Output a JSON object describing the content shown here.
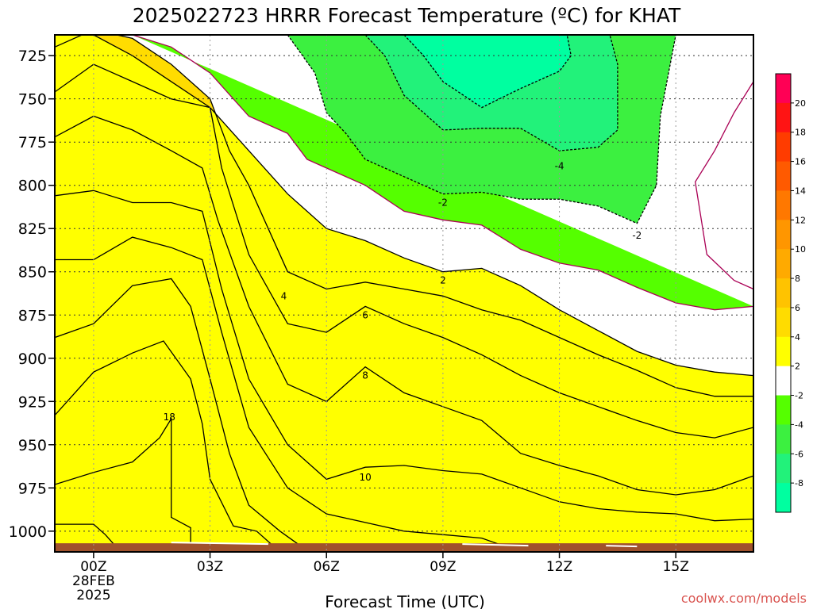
{
  "title": "2025022723 HRRR Forecast Temperature (ºC) for KHAT",
  "xlabel": "Forecast Time (UTC)",
  "credit": "coolwx.com/models",
  "chart_data": {
    "type": "contour",
    "title": "2025022723 HRRR Forecast Temperature (ºC) for KHAT",
    "xlabel": "Forecast Time (UTC)",
    "ylabel": "",
    "x_unit": "forecast hours from 00Z 28FEB 2025",
    "xlim": [
      -1.0,
      17.0
    ],
    "y_unit": "hPa",
    "ylim": [
      1012,
      713
    ],
    "y_ticks": [
      725,
      750,
      775,
      800,
      825,
      850,
      875,
      900,
      925,
      950,
      975,
      1000
    ],
    "x_ticks": [
      {
        "x": 0,
        "label": "00Z",
        "sub": [
          "28FEB",
          "2025"
        ]
      },
      {
        "x": 3,
        "label": "03Z",
        "sub": []
      },
      {
        "x": 6,
        "label": "06Z",
        "sub": []
      },
      {
        "x": 9,
        "label": "09Z",
        "sub": []
      },
      {
        "x": 12,
        "label": "12Z",
        "sub": []
      },
      {
        "x": 15,
        "label": "15Z",
        "sub": []
      }
    ],
    "grid": true,
    "colorbar": {
      "labels": [
        "20",
        "18",
        "16",
        "14",
        "12",
        "10",
        "8",
        "6",
        "4",
        "2",
        "-2",
        "-4",
        "-6",
        "-8"
      ],
      "colors": [
        "#ff0055",
        "#ff1414",
        "#ff3c00",
        "#ff5a00",
        "#ff7800",
        "#ff9600",
        "#ffaa00",
        "#ffc300",
        "#ffdc00",
        "#ffff00",
        "#ffffff",
        "#55ff00",
        "#3cf040",
        "#22f27a",
        "#00ffa0"
      ]
    },
    "ground_level_hpa": 1007,
    "contours": [
      {
        "level": 20,
        "label": "",
        "fill": "#ff0055",
        "stroke": "#000000",
        "points": [
          [
            -1,
            1012
          ],
          [
            -1,
            996
          ],
          [
            0.0,
            996
          ],
          [
            0.3,
            1002
          ],
          [
            0.5,
            1007
          ],
          [
            0.6,
            1012
          ]
        ]
      },
      {
        "level": 18,
        "label": "18",
        "fill": "#ff1414",
        "stroke": "#000000",
        "points": [
          [
            -1,
            1012
          ],
          [
            -1,
            973
          ],
          [
            0.0,
            966
          ],
          [
            1.0,
            960
          ],
          [
            1.5,
            950
          ],
          [
            1.7,
            946
          ],
          [
            2.0,
            935
          ],
          [
            2.0,
            960
          ],
          [
            2.0,
            992
          ],
          [
            2.5,
            998
          ],
          [
            2.5,
            1012
          ]
        ]
      },
      {
        "level": 16,
        "label": "",
        "fill": "#ff3c00",
        "stroke": "#000000",
        "points": [
          [
            -1,
            1012
          ],
          [
            -1,
            933
          ],
          [
            0.0,
            908
          ],
          [
            1.0,
            897
          ],
          [
            1.8,
            890
          ],
          [
            2.5,
            912
          ],
          [
            2.8,
            938
          ],
          [
            3.0,
            970
          ],
          [
            3.6,
            997
          ],
          [
            4.2,
            1000
          ],
          [
            4.8,
            1012
          ]
        ]
      },
      {
        "level": 14,
        "label": "",
        "fill": "#ff5a00",
        "stroke": "#000000",
        "points": [
          [
            -1,
            1012
          ],
          [
            -1,
            888
          ],
          [
            0.0,
            880
          ],
          [
            1.0,
            858
          ],
          [
            2.0,
            854
          ],
          [
            2.5,
            870
          ],
          [
            3.0,
            912
          ],
          [
            3.5,
            955
          ],
          [
            4.0,
            985
          ],
          [
            4.8,
            1000
          ],
          [
            5.3,
            1008
          ],
          [
            5.5,
            1012
          ]
        ]
      },
      {
        "level": 12,
        "label": "",
        "fill": "#ff7800",
        "stroke": "#000000",
        "points": [
          [
            -1,
            1012
          ],
          [
            -1,
            843
          ],
          [
            0.0,
            843
          ],
          [
            1.0,
            830
          ],
          [
            2.0,
            836
          ],
          [
            2.8,
            843
          ],
          [
            3.3,
            885
          ],
          [
            4.0,
            940
          ],
          [
            5.0,
            975
          ],
          [
            6.0,
            990
          ],
          [
            7.0,
            995
          ],
          [
            8.0,
            1000
          ],
          [
            9.0,
            1002
          ],
          [
            10.0,
            1004
          ],
          [
            10.5,
            1008
          ],
          [
            10.7,
            1012
          ]
        ]
      },
      {
        "level": 10,
        "label": "10",
        "fill": "#ff9600",
        "stroke": "#000000",
        "points": [
          [
            -1,
            1012
          ],
          [
            -1,
            806
          ],
          [
            0.0,
            803
          ],
          [
            1.0,
            810
          ],
          [
            2.0,
            810
          ],
          [
            2.8,
            815
          ],
          [
            3.3,
            860
          ],
          [
            4.0,
            912
          ],
          [
            5.0,
            950
          ],
          [
            6.0,
            970
          ],
          [
            7.0,
            963
          ],
          [
            8.0,
            962
          ],
          [
            9.0,
            965
          ],
          [
            10.0,
            967
          ],
          [
            11.0,
            975
          ],
          [
            12.0,
            983
          ],
          [
            13.0,
            987
          ],
          [
            14.0,
            989
          ],
          [
            15.0,
            990
          ],
          [
            16.0,
            994
          ],
          [
            17.0,
            993
          ],
          [
            17.0,
            1012
          ]
        ]
      },
      {
        "level": 8,
        "label": "8",
        "fill": "#ffaa00",
        "stroke": "#000000",
        "points": [
          [
            -1,
            1012
          ],
          [
            -1,
            772
          ],
          [
            0.0,
            760
          ],
          [
            1.0,
            768
          ],
          [
            2.0,
            780
          ],
          [
            2.8,
            790
          ],
          [
            3.2,
            820
          ],
          [
            4.0,
            870
          ],
          [
            5.0,
            915
          ],
          [
            6.0,
            925
          ],
          [
            7.0,
            905
          ],
          [
            8.0,
            920
          ],
          [
            9.0,
            928
          ],
          [
            10.0,
            936
          ],
          [
            11.0,
            955
          ],
          [
            12.0,
            962
          ],
          [
            13.0,
            968
          ],
          [
            14.0,
            976
          ],
          [
            15.0,
            979
          ],
          [
            16.0,
            976
          ],
          [
            17.0,
            968
          ],
          [
            17.0,
            1012
          ]
        ]
      },
      {
        "level": 6,
        "label": "6",
        "fill": "#ffc300",
        "stroke": "#000000",
        "points": [
          [
            -1,
            1012
          ],
          [
            -1,
            746
          ],
          [
            0.0,
            730
          ],
          [
            1.0,
            740
          ],
          [
            2.0,
            750
          ],
          [
            3.0,
            755
          ],
          [
            3.3,
            790
          ],
          [
            4.0,
            840
          ],
          [
            5.0,
            880
          ],
          [
            6.0,
            885
          ],
          [
            7.0,
            870
          ],
          [
            8.0,
            880
          ],
          [
            9.0,
            888
          ],
          [
            10.0,
            898
          ],
          [
            11.0,
            910
          ],
          [
            12.0,
            920
          ],
          [
            13.0,
            928
          ],
          [
            14.0,
            936
          ],
          [
            15.0,
            943
          ],
          [
            16.0,
            946
          ],
          [
            17.0,
            940
          ],
          [
            17.0,
            1012
          ]
        ]
      },
      {
        "level": 4,
        "label": "4",
        "fill": "#ffdc00",
        "stroke": "#000000",
        "points": [
          [
            -1,
            1012
          ],
          [
            -1,
            720
          ],
          [
            0.0,
            710
          ],
          [
            1.0,
            715
          ],
          [
            2.0,
            730
          ],
          [
            3.0,
            750
          ],
          [
            3.5,
            780
          ],
          [
            4.0,
            800
          ],
          [
            5.0,
            850
          ],
          [
            6.0,
            860
          ],
          [
            7.0,
            856
          ],
          [
            8.0,
            860
          ],
          [
            9.0,
            864
          ],
          [
            10.0,
            872
          ],
          [
            11.0,
            878
          ],
          [
            12.0,
            888
          ],
          [
            13.0,
            898
          ],
          [
            14.0,
            907
          ],
          [
            15.0,
            917
          ],
          [
            16.0,
            922
          ],
          [
            17.0,
            922
          ],
          [
            17.0,
            1012
          ]
        ]
      },
      {
        "level": 2,
        "label": "2",
        "fill": "#ffff00",
        "stroke": "#000000",
        "points": [
          [
            -1,
            1012
          ],
          [
            -1,
            713
          ],
          [
            0.0,
            713
          ],
          [
            1.0,
            725
          ],
          [
            2.0,
            740
          ],
          [
            3.0,
            755
          ],
          [
            3.6,
            770
          ],
          [
            5.0,
            805
          ],
          [
            6.0,
            825
          ],
          [
            7.0,
            832
          ],
          [
            8.0,
            842
          ],
          [
            9.0,
            850
          ],
          [
            10.0,
            848
          ],
          [
            11.0,
            858
          ],
          [
            12.0,
            872
          ],
          [
            13.0,
            884
          ],
          [
            14.0,
            896
          ],
          [
            15.0,
            904
          ],
          [
            16.0,
            908
          ],
          [
            17.0,
            910
          ],
          [
            17.0,
            1012
          ]
        ]
      },
      {
        "level": -2,
        "label": "-2",
        "fill": "#55ff00",
        "stroke": "#aa0055",
        "points": [
          [
            1.0,
            713
          ],
          [
            2.0,
            720
          ],
          [
            3.0,
            735
          ],
          [
            4.0,
            760
          ],
          [
            5.0,
            770
          ],
          [
            5.5,
            785
          ],
          [
            6.0,
            790
          ],
          [
            7.0,
            800
          ],
          [
            8.0,
            815
          ],
          [
            9.0,
            820
          ],
          [
            10.0,
            823
          ],
          [
            11.0,
            837
          ],
          [
            12.0,
            845
          ],
          [
            13.0,
            849
          ],
          [
            14.0,
            859
          ],
          [
            15.0,
            868
          ],
          [
            16.0,
            872
          ],
          [
            17.0,
            870
          ]
        ]
      },
      {
        "level": -2,
        "label": "",
        "fill": "",
        "stroke": "#aa0055",
        "points": [
          [
            17.0,
            740
          ],
          [
            16.5,
            758
          ],
          [
            16.0,
            780
          ],
          [
            15.5,
            798
          ],
          [
            15.8,
            840
          ],
          [
            16.5,
            855
          ],
          [
            17.0,
            860
          ]
        ]
      },
      {
        "level": -4,
        "label": "-4",
        "fill": "#3cf040",
        "stroke": "#000000",
        "dashed": true,
        "points": [
          [
            5.0,
            713
          ],
          [
            5.7,
            735
          ],
          [
            6.0,
            758
          ],
          [
            6.5,
            770
          ],
          [
            7.0,
            785
          ],
          [
            7.5,
            790
          ],
          [
            8.0,
            795
          ],
          [
            9.0,
            805
          ],
          [
            10.0,
            804
          ],
          [
            11.0,
            808
          ],
          [
            12.0,
            808
          ],
          [
            13.0,
            812
          ],
          [
            14.0,
            822
          ],
          [
            14.5,
            800
          ],
          [
            14.6,
            760
          ],
          [
            15.0,
            713
          ]
        ]
      },
      {
        "level": -6,
        "label": "-6",
        "fill": "#22f27a",
        "stroke": "#000000",
        "dashed": true,
        "points": [
          [
            7.0,
            713
          ],
          [
            7.5,
            725
          ],
          [
            8.0,
            748
          ],
          [
            9.0,
            768
          ],
          [
            10.0,
            767
          ],
          [
            11.0,
            767
          ],
          [
            12.0,
            780
          ],
          [
            13.0,
            778
          ],
          [
            13.5,
            768
          ],
          [
            13.5,
            730
          ],
          [
            13.3,
            713
          ]
        ]
      },
      {
        "level": -8,
        "label": "-8",
        "fill": "#00ffa0",
        "stroke": "#000000",
        "dashed": true,
        "points": [
          [
            8.0,
            713
          ],
          [
            8.5,
            725
          ],
          [
            9.0,
            740
          ],
          [
            10.0,
            755
          ],
          [
            11.0,
            744
          ],
          [
            12.0,
            734
          ],
          [
            12.3,
            725
          ],
          [
            12.2,
            713
          ]
        ]
      }
    ],
    "contour_labels": [
      {
        "text": "18",
        "x": 1.95,
        "y": 934
      },
      {
        "text": "10",
        "x": 7.0,
        "y": 969
      },
      {
        "text": "8",
        "x": 7.0,
        "y": 910
      },
      {
        "text": "6",
        "x": 7.0,
        "y": 875
      },
      {
        "text": "4",
        "x": 4.9,
        "y": 864
      },
      {
        "text": "2",
        "x": 9.0,
        "y": 855
      },
      {
        "text": "-2",
        "x": 9.0,
        "y": 810
      },
      {
        "text": "-2",
        "x": 14.0,
        "y": 829
      },
      {
        "text": "-4",
        "x": 12.0,
        "y": 789
      }
    ]
  }
}
